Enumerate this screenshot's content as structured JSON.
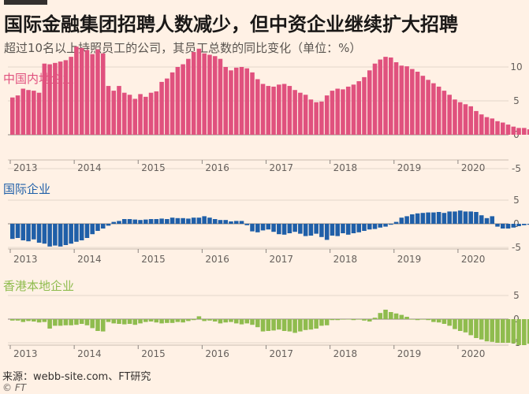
{
  "header": {
    "title": "国际金融集团招聘人数减少，但中资企业继续扩大招聘",
    "subtitle": "超过10名以上持照员工的公司，其员工总数的同比变化（单位：%）"
  },
  "footer": {
    "source": "来源：webb-site.com、FT研究",
    "credit": "© FT"
  },
  "chart_data": [
    {
      "type": "bar",
      "title": "中国内地企业",
      "color": "#e0517e",
      "x_start": "2013-01",
      "frequency": "monthly",
      "ylim": [
        -5,
        13
      ],
      "yticks": [
        10,
        5,
        0,
        -5
      ],
      "xticks": [
        "2013",
        "2014",
        "2015",
        "2016",
        "2017",
        "2018",
        "2019",
        "2020"
      ],
      "values": [
        5.5,
        5.8,
        6.8,
        6.6,
        6.5,
        6.2,
        10.5,
        10.4,
        10.6,
        10.8,
        11.0,
        11.5,
        13.0,
        12.8,
        12.5,
        11.9,
        12.6,
        12.0,
        7.2,
        6.5,
        7.2,
        6.2,
        5.9,
        5.3,
        6.0,
        5.6,
        6.2,
        6.4,
        7.8,
        8.3,
        9.2,
        10.0,
        10.4,
        11.2,
        12.2,
        12.7,
        12.0,
        11.8,
        11.6,
        11.2,
        10.0,
        9.5,
        9.9,
        10.0,
        9.8,
        9.2,
        8.2,
        7.5,
        7.2,
        7.1,
        7.4,
        7.5,
        7.2,
        6.6,
        6.2,
        5.9,
        5.2,
        4.8,
        4.9,
        5.8,
        6.5,
        6.8,
        6.7,
        7.1,
        7.4,
        7.9,
        8.5,
        9.5,
        10.5,
        11.1,
        11.5,
        11.4,
        10.7,
        10.2,
        10.1,
        9.7,
        9.3,
        8.7,
        8.1,
        7.6,
        7.1,
        6.5,
        5.9,
        5.2,
        4.8,
        4.5,
        4.2,
        3.5,
        3.0,
        2.6,
        2.4,
        2.0,
        1.8,
        1.5,
        1.2,
        1.0,
        1.0,
        0.8
      ]
    },
    {
      "type": "bar",
      "title": "国际企业",
      "color": "#1f5fa8",
      "x_start": "2013-01",
      "frequency": "monthly",
      "ylim": [
        -6,
        6
      ],
      "yticks": [
        5,
        0,
        -5
      ],
      "xticks": [
        "2013",
        "2014",
        "2015",
        "2016",
        "2017",
        "2018",
        "2019",
        "2020"
      ],
      "values": [
        -3.2,
        -3.0,
        -3.5,
        -3.7,
        -3.3,
        -4.0,
        -4.2,
        -4.8,
        -4.6,
        -4.8,
        -4.5,
        -4.2,
        -3.8,
        -3.5,
        -3.0,
        -2.2,
        -1.5,
        -1.0,
        -0.4,
        0.4,
        0.6,
        1.0,
        1.0,
        0.9,
        0.8,
        0.9,
        1.0,
        1.0,
        1.1,
        1.0,
        1.3,
        1.2,
        1.2,
        1.1,
        1.3,
        1.3,
        1.6,
        1.3,
        1.0,
        0.8,
        0.8,
        0.5,
        0.6,
        0.6,
        -0.3,
        -1.6,
        -1.8,
        -1.4,
        -1.2,
        -1.7,
        -2.2,
        -2.3,
        -2.0,
        -1.7,
        -2.1,
        -2.6,
        -2.5,
        -2.1,
        -2.8,
        -3.4,
        -2.5,
        -2.6,
        -2.0,
        -2.3,
        -2.0,
        -1.8,
        -1.5,
        -1.2,
        -1.1,
        -0.8,
        -0.6,
        -0.2,
        0.4,
        1.3,
        1.6,
        2.0,
        2.2,
        2.3,
        2.4,
        2.4,
        2.5,
        2.3,
        2.6,
        2.6,
        2.8,
        2.6,
        2.6,
        2.5,
        1.8,
        1.2,
        1.6,
        -0.6,
        -1.0,
        -1.0,
        -0.8,
        -0.5,
        -0.3,
        -0.2
      ]
    },
    {
      "type": "bar",
      "title": "香港本地企业",
      "color": "#8fbc4e",
      "x_start": "2013-01",
      "frequency": "monthly",
      "ylim": [
        -6,
        6
      ],
      "yticks": [
        5,
        0,
        -5
      ],
      "xticks": [
        "2013",
        "2014",
        "2015",
        "2016",
        "2017",
        "2018",
        "2019",
        "2020"
      ],
      "values": [
        -0.3,
        -0.3,
        -0.6,
        -0.4,
        -0.5,
        -0.7,
        -0.6,
        -2.0,
        -1.4,
        -1.4,
        -1.3,
        -1.3,
        -1.2,
        -1.0,
        -1.3,
        -1.9,
        -2.5,
        -2.6,
        -0.6,
        -0.9,
        -1.0,
        -1.1,
        -1.0,
        -1.2,
        -0.9,
        -0.6,
        -0.5,
        -0.7,
        -0.9,
        -0.8,
        -0.8,
        -0.6,
        -0.7,
        -0.4,
        -0.2,
        0.6,
        -0.4,
        -0.3,
        -0.5,
        -0.9,
        -0.7,
        -0.6,
        -0.9,
        -1.1,
        -0.9,
        -1.2,
        -1.7,
        -2.6,
        -2.5,
        -2.4,
        -2.2,
        -2.5,
        -2.6,
        -2.9,
        -2.6,
        -2.3,
        -2.2,
        -2.0,
        -1.4,
        -1.3,
        -0.2,
        -0.2,
        -0.1,
        0.0,
        -0.2,
        -0.1,
        -0.3,
        -0.5,
        0.3,
        1.3,
        2.0,
        1.5,
        1.2,
        0.9,
        0.5,
        -0.1,
        -0.2,
        -0.1,
        -0.2,
        -0.6,
        -0.7,
        -1.0,
        -1.4,
        -2.1,
        -2.5,
        -2.8,
        -3.4,
        -4.0,
        -4.3,
        -4.7,
        -4.8,
        -5.0,
        -5.0,
        -5.0,
        -5.1,
        -5.5,
        -5.5,
        -5.2
      ]
    }
  ]
}
